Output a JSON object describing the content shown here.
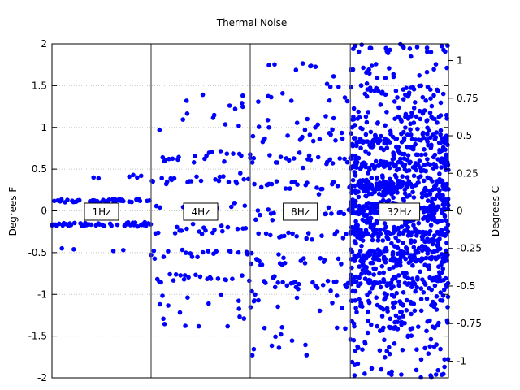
{
  "chart_data": {
    "type": "scatter",
    "title": "Thermal Noise",
    "ylabel": "Degrees F",
    "y2label": "Degrees C",
    "ylim": [
      -2,
      2
    ],
    "y2lim": [
      -1.1111,
      1.1111
    ],
    "xlim": [
      0,
      400
    ],
    "grid": true,
    "yticks": [
      -2,
      -1.5,
      -1,
      -0.5,
      0,
      0.5,
      1,
      1.5,
      2
    ],
    "y2ticks": [
      -1,
      -0.75,
      -0.5,
      -0.25,
      0,
      0.25,
      0.5,
      0.75,
      1
    ],
    "marker_color": "#0000ff",
    "grid_color": "#c8c8c8",
    "sections": [
      {
        "label": "1Hz",
        "x_start": 0,
        "x_end": 100,
        "sample_interval": 0.1
      },
      {
        "label": "4Hz",
        "x_start": 100,
        "x_end": 200,
        "sample_interval": 0.25
      },
      {
        "label": "8Hz",
        "x_start": 200,
        "x_end": 301,
        "sample_interval": 0.25
      },
      {
        "label": "32Hz",
        "x_start": 301,
        "x_end": 400,
        "sample_interval": 0.11
      }
    ]
  }
}
